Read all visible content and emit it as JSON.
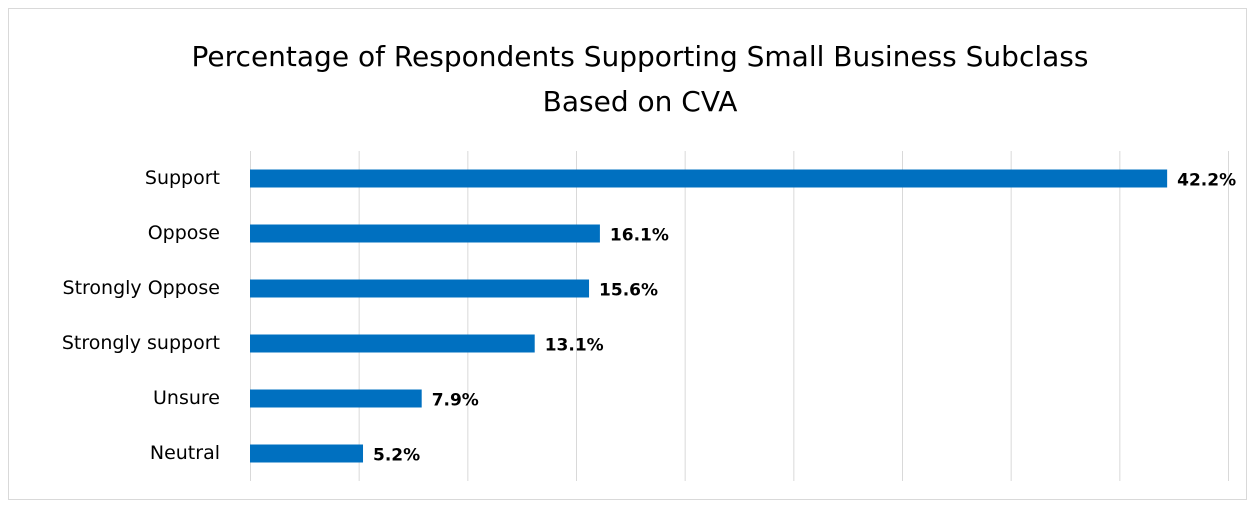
{
  "chart_data": {
    "type": "bar",
    "orientation": "horizontal",
    "title": [
      "Percentage of Respondents Supporting Small Business Subclass",
      "Based on CVA"
    ],
    "categories": [
      "Support",
      "Oppose",
      "Strongly Oppose",
      "Strongly support",
      "Unsure",
      "Neutral"
    ],
    "values": [
      42.2,
      16.1,
      15.6,
      13.1,
      7.9,
      5.2
    ],
    "value_labels": [
      "42.2%",
      "16.1%",
      "15.6%",
      "13.1%",
      "7.9%",
      "5.2%"
    ],
    "color": "#0070c0",
    "xlim": [
      0,
      45
    ],
    "xticks": [
      0,
      5,
      10,
      15,
      20,
      25,
      30,
      35,
      40,
      45
    ],
    "grid": true
  }
}
